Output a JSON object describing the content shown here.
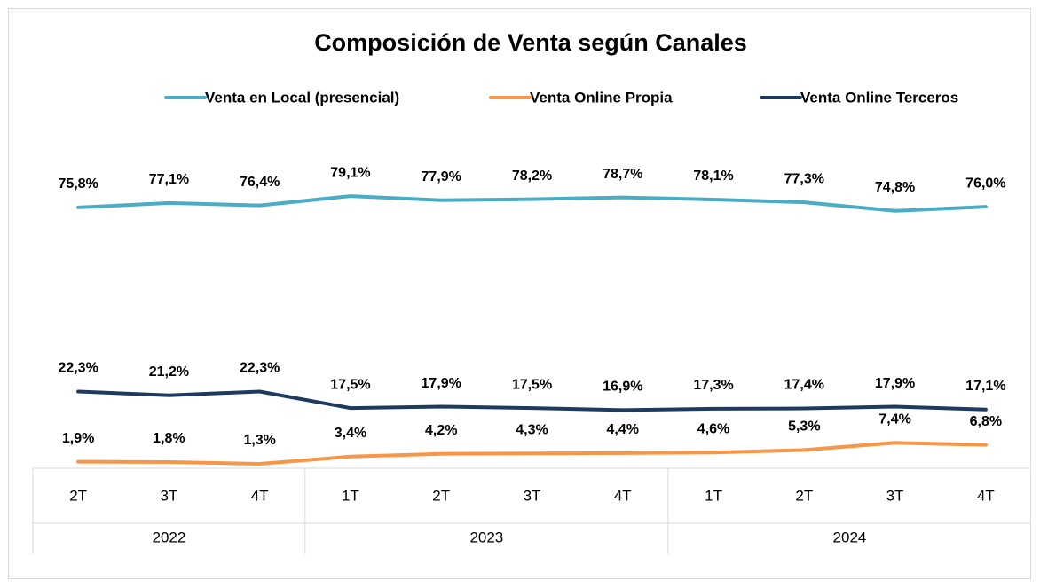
{
  "chart_data": {
    "type": "line",
    "title": "Composición de Venta según Canales",
    "categories": [
      "2T",
      "3T",
      "4T",
      "1T",
      "2T",
      "3T",
      "4T",
      "1T",
      "2T",
      "3T",
      "4T"
    ],
    "category_groups": [
      "2022",
      "2022",
      "2022",
      "2023",
      "2023",
      "2023",
      "2023",
      "2024",
      "2024",
      "2024",
      "2024"
    ],
    "ylim": [
      0,
      100
    ],
    "legend": "top",
    "series": [
      {
        "name": "Venta en Local (presencial)",
        "color": "#4bacc6",
        "values": [
          75.8,
          77.1,
          76.4,
          79.1,
          77.9,
          78.2,
          78.7,
          78.1,
          77.3,
          74.8,
          76.0
        ],
        "value_labels": [
          "75,8%",
          "77,1%",
          "76,4%",
          "79,1%",
          "77,9%",
          "78,2%",
          "78,7%",
          "78,1%",
          "77,3%",
          "74,8%",
          "76,0%"
        ]
      },
      {
        "name": "Venta  Online Propia",
        "color": "#f79646",
        "values": [
          1.9,
          1.8,
          1.3,
          3.4,
          4.2,
          4.3,
          4.4,
          4.6,
          5.3,
          7.4,
          6.8
        ],
        "value_labels": [
          "1,9%",
          "1,8%",
          "1,3%",
          "3,4%",
          "4,2%",
          "4,3%",
          "4,4%",
          "4,6%",
          "5,3%",
          "7,4%",
          "6,8%"
        ]
      },
      {
        "name": "Venta  Online Terceros",
        "color": "#1f3a5f",
        "values": [
          22.3,
          21.2,
          22.3,
          17.5,
          17.9,
          17.5,
          16.9,
          17.3,
          17.4,
          17.9,
          17.1
        ],
        "value_labels": [
          "22,3%",
          "21,2%",
          "22,3%",
          "17,5%",
          "17,9%",
          "17,5%",
          "16,9%",
          "17,3%",
          "17,4%",
          "17,9%",
          "17,1%"
        ]
      }
    ]
  }
}
